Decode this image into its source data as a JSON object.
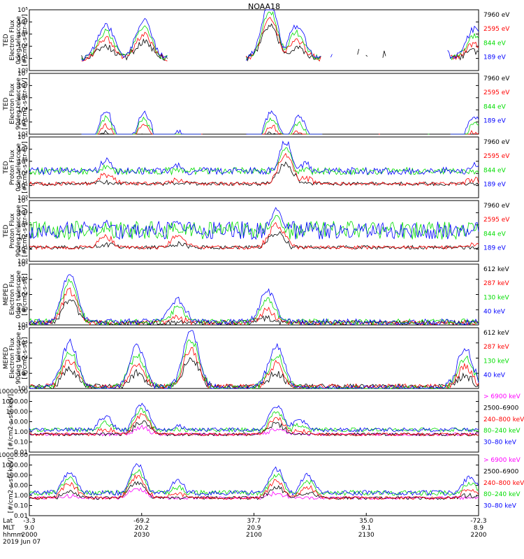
{
  "title": "NOAA18",
  "colors": {
    "black": "#000000",
    "red": "#ff0000",
    "green": "#00dd00",
    "blue": "#0000ff",
    "magenta": "#ff00ff"
  },
  "chart_data": [
    {
      "type": "line",
      "ylabel": [
        "TED",
        "Electron Flux",
        "0deg telescope",
        "[#/cm2-s-str-eV]"
      ],
      "y_ticks": [
        "10⁰",
        "10¹",
        "10²",
        "10³",
        "10⁴",
        "10⁵"
      ],
      "ylim": [
        0,
        5
      ],
      "scale": "log",
      "legend": [
        {
          "text": "7960 eV",
          "color": "black"
        },
        {
          "text": "2595 eV",
          "color": "red"
        },
        {
          "text": "844 eV",
          "color": "green"
        },
        {
          "text": "189 eV",
          "color": "blue"
        }
      ],
      "events": [
        [
          0.17,
          3.8
        ],
        [
          0.255,
          4.2
        ],
        [
          0.535,
          5.5
        ],
        [
          0.595,
          3.7
        ],
        [
          0.99,
          3.4
        ]
      ],
      "background": null,
      "floor": 1.0,
      "sparse": 0.35
    },
    {
      "type": "line",
      "ylabel": [
        "TED",
        "Electron Flux",
        "90deg telescope",
        "[#/cm2-s-str-eV]"
      ],
      "y_ticks": [
        "10²",
        "10³",
        "10⁴",
        "10⁵",
        "10⁶",
        "10⁷"
      ],
      "ylim": [
        2,
        7
      ],
      "scale": "log",
      "legend": [
        {
          "text": "7960 eV",
          "color": "black"
        },
        {
          "text": "2595 eV",
          "color": "red"
        },
        {
          "text": "844 eV",
          "color": "green"
        },
        {
          "text": "189 eV",
          "color": "blue"
        }
      ],
      "events": [
        [
          0.17,
          3.9
        ],
        [
          0.255,
          3.8
        ],
        [
          0.33,
          2.2
        ],
        [
          0.54,
          3.9
        ],
        [
          0.6,
          3.4
        ],
        [
          0.99,
          3.4
        ]
      ],
      "background": null,
      "floor": 0.6,
      "sparse": 0.3
    },
    {
      "type": "line",
      "ylabel": [
        "TED",
        "Proton Flux",
        "0deg telescope",
        "[#/cm2-s-str-eV]"
      ],
      "y_ticks": [
        "10⁰",
        "10¹",
        "10²",
        "10³",
        "10⁴",
        "10⁵"
      ],
      "ylim": [
        0,
        5
      ],
      "scale": "log",
      "legend": [
        {
          "text": "7960 eV",
          "color": "black"
        },
        {
          "text": "2595 eV",
          "color": "red"
        },
        {
          "text": "844 eV",
          "color": "green"
        },
        {
          "text": "189 eV",
          "color": "blue"
        }
      ],
      "events": [
        [
          0.17,
          3.1
        ],
        [
          0.33,
          2.7
        ],
        [
          0.57,
          4.6
        ],
        [
          0.615,
          2.8
        ],
        [
          0.99,
          2.7
        ]
      ],
      "background": [
        1.9,
        2.5
      ],
      "floor": 1.0,
      "sparse": 0.0
    },
    {
      "type": "line",
      "ylabel": [
        "TED",
        "Proton Flux",
        "90deg telescope",
        "[#/cm2-s-str-eV]"
      ],
      "y_ticks": [
        "10⁰",
        "10¹",
        "10²",
        "10³",
        "10⁴",
        "10⁵"
      ],
      "ylim": [
        0,
        5
      ],
      "scale": "log",
      "legend": [
        {
          "text": "7960 eV",
          "color": "black"
        },
        {
          "text": "2595 eV",
          "color": "red"
        },
        {
          "text": "844 eV",
          "color": "green"
        },
        {
          "text": "189 eV",
          "color": "blue"
        }
      ],
      "events": [
        [
          0.17,
          3.2
        ],
        [
          0.33,
          3.2
        ],
        [
          0.55,
          4.2
        ],
        [
          0.99,
          2.5
        ]
      ],
      "background": [
        1.8,
        3.3
      ],
      "floor": 1.0,
      "sparse": 0.0
    },
    {
      "type": "line",
      "ylabel": [
        "MEPED",
        "Electron Flux",
        "0deg telescope",
        "[#/cm2-s-str]"
      ],
      "y_ticks": [
        "10²",
        "10³",
        "10⁴",
        "10⁵",
        "10⁶"
      ],
      "ylim": [
        2,
        6
      ],
      "scale": "log",
      "legend": [
        {
          "text": "612 keV",
          "color": "black"
        },
        {
          "text": "287 keV",
          "color": "red"
        },
        {
          "text": "130 keV",
          "color": "green"
        },
        {
          "text": "40 keV",
          "color": "blue"
        }
      ],
      "events": [
        [
          0.09,
          5.4
        ],
        [
          0.33,
          3.7
        ],
        [
          0.53,
          4.2
        ]
      ],
      "background": [
        2.0,
        2.4
      ],
      "floor": 2.0,
      "sparse": 0.0
    },
    {
      "type": "line",
      "ylabel": [
        "MEPED",
        "Electron Flux",
        "90deg telescope",
        "[#/cm2-s-str]"
      ],
      "y_ticks": [
        "10²",
        "10³",
        "10⁴",
        "10⁵",
        "10⁶"
      ],
      "ylim": [
        2,
        6
      ],
      "scale": "log",
      "legend": [
        {
          "text": "612 keV",
          "color": "black"
        },
        {
          "text": "287 keV",
          "color": "red"
        },
        {
          "text": "130 keV",
          "color": "green"
        },
        {
          "text": "40 keV",
          "color": "blue"
        }
      ],
      "events": [
        [
          0.09,
          5.0
        ],
        [
          0.24,
          4.8
        ],
        [
          0.36,
          5.8
        ],
        [
          0.55,
          4.8
        ],
        [
          0.97,
          4.6
        ]
      ],
      "background": [
        1.8,
        2.2
      ],
      "floor": 2.0,
      "sparse": 0.0
    },
    {
      "type": "line",
      "ylabel": [
        "[#/cm2-s-str-keV]"
      ],
      "y_ticks": [
        "0.01",
        "0.10",
        "1.00",
        "10.00",
        "100.00",
        "1000.00",
        "10000.00"
      ],
      "ylim": [
        -2,
        4
      ],
      "scale": "log",
      "legend": [
        {
          "text": "> 6900 keV",
          "color": "magenta"
        },
        {
          "text": "2500–6900",
          "color": "black"
        },
        {
          "text": "240–800 keV",
          "color": "red"
        },
        {
          "text": "80–240 keV",
          "color": "green"
        },
        {
          "text": "30–80 keV",
          "color": "blue"
        }
      ],
      "events": [
        [
          0.17,
          1.5
        ],
        [
          0.25,
          2.8
        ],
        [
          0.33,
          0.6
        ],
        [
          0.55,
          2.6
        ],
        [
          0.6,
          1.3
        ]
      ],
      "background": [
        0.0,
        0.4
      ],
      "floor": -0.4,
      "sparse": 0.0
    },
    {
      "type": "line",
      "ylabel": [
        "[#/cm2-s-str-keV]"
      ],
      "y_ticks": [
        "0.01",
        "0.10",
        "1.00",
        "10.00",
        "100.00",
        "1000.00",
        "10000.00"
      ],
      "ylim": [
        -2,
        4
      ],
      "scale": "log",
      "legend": [
        {
          "text": "> 6900 keV",
          "color": "magenta"
        },
        {
          "text": "2500–6900",
          "color": "black"
        },
        {
          "text": "240–800 keV",
          "color": "red"
        },
        {
          "text": "80–240 keV",
          "color": "green"
        },
        {
          "text": "30–80 keV",
          "color": "blue"
        }
      ],
      "events": [
        [
          0.09,
          2.3
        ],
        [
          0.24,
          3.1
        ],
        [
          0.33,
          1.4
        ],
        [
          0.55,
          2.6
        ],
        [
          0.62,
          2.0
        ],
        [
          0.98,
          1.8
        ]
      ],
      "background": [
        0.0,
        0.5
      ],
      "floor": -0.4,
      "sparse": 0.0
    }
  ],
  "x_axis": {
    "row_labels": [
      "Lat",
      "MLT",
      "hhmm",
      "2019 Jun 07"
    ],
    "ticks": [
      {
        "lat": "-3.3",
        "mlt": "9.0",
        "hhmm": "2000"
      },
      {
        "lat": "-69.2",
        "mlt": "20.2",
        "hhmm": "2030"
      },
      {
        "lat": "37.7",
        "mlt": "20.9",
        "hhmm": "2100"
      },
      {
        "lat": "35.0",
        "mlt": "9.1",
        "hhmm": "2130"
      },
      {
        "lat": "-72.3",
        "mlt": "8.9",
        "hhmm": "2200"
      }
    ]
  }
}
